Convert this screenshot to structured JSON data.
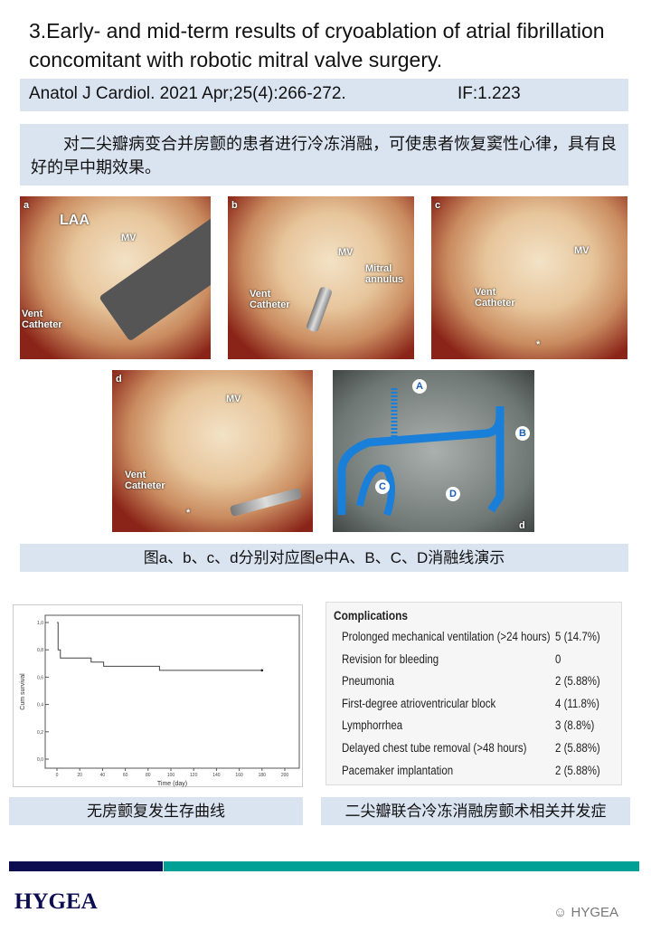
{
  "title": "3.Early- and mid-term results of cryoablation of atrial fibrillation concomitant with robotic mitral valve surgery.",
  "citation": {
    "journal": "Anatol J Cardiol. 2021 Apr;25(4):266-272.",
    "impact_factor": "IF:1.223"
  },
  "summary": "对二尖瓣病变合并房颤的患者进行冷冻消融，可使患者恢复窦性心律，具有良好的早中期效果。",
  "photos": [
    {
      "panel": "a",
      "labels": [
        "LAA",
        "MV",
        "Vent Catheter"
      ]
    },
    {
      "panel": "b",
      "labels": [
        "MV",
        "Mitral annulus",
        "Vent Catheter"
      ]
    },
    {
      "panel": "c",
      "labels": [
        "MV",
        "Vent Catheter",
        "*"
      ]
    },
    {
      "panel": "d",
      "labels": [
        "MV",
        "Vent Catheter",
        "*"
      ]
    },
    {
      "panel": "e",
      "labels": [
        "A",
        "B",
        "C",
        "D",
        "d"
      ]
    }
  ],
  "photo_caption": "图a、b、c、d分别对应图e中A、B、C、D消融线演示",
  "chart_data": {
    "type": "line",
    "step": true,
    "xlabel": "Time (day)",
    "ylabel": "Cum survival",
    "xlim": [
      0,
      200
    ],
    "ylim": [
      0,
      1
    ],
    "xticks": [
      "0",
      "20",
      "40",
      "60",
      "80",
      "100",
      "120",
      "140",
      "160",
      "180",
      "200"
    ],
    "yticks": [
      "0,0",
      "0,2",
      "0,4",
      "0,6",
      "0,8",
      "1,0"
    ],
    "x": [
      0,
      1,
      3,
      30,
      41,
      90,
      180
    ],
    "y": [
      1.0,
      0.8,
      0.74,
      0.71,
      0.68,
      0.65,
      0.65
    ],
    "censored_at": [
      180
    ],
    "color": "#444444"
  },
  "chart_caption": "无房颤复发生存曲线",
  "complications": {
    "header": "Complications",
    "rows": [
      {
        "name": "Prolonged mechanical ventilation (>24 hours)",
        "value": "5 (14.7%)"
      },
      {
        "name": "Revision for bleeding",
        "value": "0"
      },
      {
        "name": "Pneumonia",
        "value": "2 (5.88%)"
      },
      {
        "name": "First-degree atrioventricular block",
        "value": "4 (11.8%)"
      },
      {
        "name": "Lymphorrhea",
        "value": "3 (8.8%)"
      },
      {
        "name": "Delayed chest tube removal (>48 hours)",
        "value": "2 (5.88%)"
      },
      {
        "name": "Pacemaker implantation",
        "value": "2 (5.88%)"
      }
    ]
  },
  "table_caption": "二尖瓣联合冷冻消融房颤术相关并发症",
  "footer": {
    "logo": "HYGEA",
    "watermark": "HYGEA",
    "colors": {
      "navy": "#0c0c50",
      "teal": "#00a096"
    }
  }
}
